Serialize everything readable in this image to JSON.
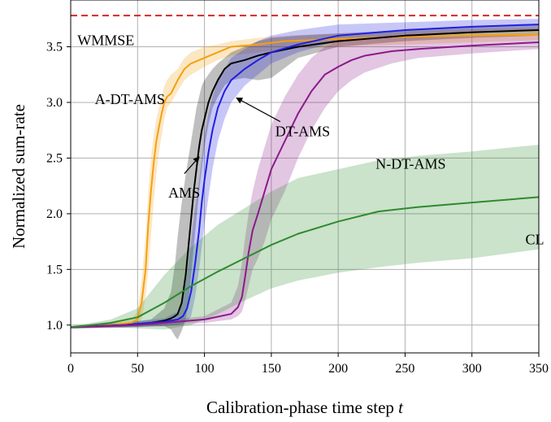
{
  "chart_data": {
    "type": "line",
    "xlabel": "Calibration-phase time step",
    "xlabel_var": "t",
    "ylabel": "Normalized sum-rate",
    "xlim": [
      0,
      350
    ],
    "ylim": [
      0.75,
      3.92
    ],
    "xticks": [
      0,
      50,
      100,
      150,
      200,
      250,
      300,
      350
    ],
    "yticks": [
      1.0,
      1.5,
      2.0,
      2.5,
      3.0,
      3.5
    ],
    "ytick_labels": [
      "1.0",
      "1.5",
      "2.0",
      "2.5",
      "3.0",
      "3.5"
    ],
    "grid": true,
    "reference_line": {
      "name": "WMMSE",
      "y": 3.78,
      "color": "#d62728",
      "style": "dashed"
    },
    "series": [
      {
        "name": "A-DT-AMS",
        "color": "#f5a010",
        "x": [
          0,
          30,
          45,
          50,
          53,
          56,
          58,
          60,
          62,
          64,
          66,
          68,
          70,
          72,
          75,
          80,
          85,
          90,
          100,
          110,
          120,
          140,
          160,
          200,
          250,
          300,
          350
        ],
        "y": [
          0.98,
          1.0,
          1.02,
          1.05,
          1.2,
          1.5,
          1.9,
          2.2,
          2.45,
          2.65,
          2.78,
          2.9,
          3.0,
          3.05,
          3.08,
          3.2,
          3.3,
          3.35,
          3.4,
          3.45,
          3.5,
          3.52,
          3.55,
          3.57,
          3.59,
          3.6,
          3.61
        ],
        "lower": [
          0.97,
          0.98,
          0.99,
          1.0,
          1.05,
          1.25,
          1.5,
          1.8,
          2.1,
          2.35,
          2.55,
          2.7,
          2.85,
          2.95,
          3.0,
          3.1,
          3.2,
          3.25,
          3.32,
          3.38,
          3.42,
          3.45,
          3.48,
          3.5,
          3.52,
          3.54,
          3.56
        ],
        "upper": [
          0.99,
          1.02,
          1.05,
          1.12,
          1.4,
          1.8,
          2.2,
          2.5,
          2.7,
          2.85,
          2.95,
          3.05,
          3.15,
          3.2,
          3.25,
          3.3,
          3.4,
          3.45,
          3.5,
          3.52,
          3.55,
          3.58,
          3.6,
          3.62,
          3.64,
          3.66,
          3.67
        ]
      },
      {
        "name": "AMS",
        "color": "#000000",
        "x": [
          0,
          40,
          60,
          70,
          75,
          78,
          80,
          83,
          86,
          88,
          90,
          92,
          94,
          96,
          98,
          100,
          103,
          106,
          110,
          115,
          120,
          130,
          140,
          150,
          170,
          200,
          250,
          300,
          350
        ],
        "y": [
          0.98,
          1.0,
          1.02,
          1.04,
          1.06,
          1.08,
          1.1,
          1.2,
          1.45,
          1.7,
          1.95,
          2.2,
          2.4,
          2.6,
          2.75,
          2.85,
          3.0,
          3.1,
          3.2,
          3.3,
          3.35,
          3.38,
          3.42,
          3.45,
          3.5,
          3.55,
          3.6,
          3.63,
          3.65
        ],
        "lower": [
          0.97,
          0.98,
          0.99,
          0.99,
          0.96,
          0.9,
          0.87,
          0.95,
          1.05,
          1.2,
          1.45,
          1.7,
          1.95,
          2.2,
          2.4,
          2.6,
          2.8,
          2.95,
          3.05,
          3.15,
          3.2,
          3.22,
          3.2,
          3.22,
          3.4,
          3.5,
          3.55,
          3.58,
          3.6
        ],
        "upper": [
          0.99,
          1.02,
          1.05,
          1.15,
          1.3,
          1.55,
          1.8,
          2.1,
          2.35,
          2.5,
          2.65,
          2.8,
          2.95,
          3.05,
          3.15,
          3.2,
          3.25,
          3.3,
          3.35,
          3.4,
          3.45,
          3.5,
          3.55,
          3.58,
          3.6,
          3.62,
          3.65,
          3.68,
          3.7
        ]
      },
      {
        "name": "DT-AMS",
        "color": "#1f1fe0",
        "x": [
          0,
          40,
          70,
          80,
          84,
          87,
          90,
          93,
          96,
          98,
          100,
          103,
          106,
          110,
          115,
          120,
          130,
          140,
          150,
          170,
          200,
          250,
          300,
          350
        ],
        "y": [
          0.98,
          1.0,
          1.03,
          1.05,
          1.08,
          1.15,
          1.3,
          1.55,
          1.85,
          2.1,
          2.3,
          2.55,
          2.75,
          2.95,
          3.1,
          3.2,
          3.3,
          3.38,
          3.45,
          3.52,
          3.6,
          3.65,
          3.68,
          3.7
        ],
        "lower": [
          0.97,
          0.98,
          0.99,
          1.0,
          1.01,
          1.03,
          1.08,
          1.25,
          1.5,
          1.7,
          1.9,
          2.15,
          2.4,
          2.65,
          2.85,
          3.0,
          3.15,
          3.25,
          3.35,
          3.45,
          3.55,
          3.6,
          3.63,
          3.65
        ],
        "upper": [
          0.99,
          1.02,
          1.06,
          1.12,
          1.25,
          1.45,
          1.75,
          2.05,
          2.3,
          2.5,
          2.7,
          2.9,
          3.05,
          3.2,
          3.3,
          3.4,
          3.48,
          3.55,
          3.6,
          3.65,
          3.7,
          3.72,
          3.74,
          3.75
        ]
      },
      {
        "name": "N-DT-AMS",
        "color": "#8b1a8b",
        "x": [
          0,
          50,
          100,
          120,
          125,
          128,
          130,
          133,
          136,
          140,
          145,
          150,
          160,
          170,
          180,
          190,
          200,
          210,
          220,
          240,
          260,
          300,
          350
        ],
        "y": [
          0.98,
          1.0,
          1.05,
          1.1,
          1.16,
          1.25,
          1.4,
          1.65,
          1.85,
          2.0,
          2.2,
          2.4,
          2.65,
          2.9,
          3.1,
          3.25,
          3.32,
          3.38,
          3.42,
          3.46,
          3.48,
          3.51,
          3.54
        ],
        "lower": [
          0.97,
          0.98,
          1.02,
          1.05,
          1.08,
          1.12,
          1.2,
          1.35,
          1.5,
          1.6,
          1.75,
          1.95,
          2.2,
          2.5,
          2.75,
          2.95,
          3.1,
          3.2,
          3.27,
          3.35,
          3.4,
          3.44,
          3.48
        ],
        "upper": [
          0.99,
          1.02,
          1.08,
          1.2,
          1.35,
          1.55,
          1.75,
          2.0,
          2.2,
          2.4,
          2.6,
          2.8,
          3.05,
          3.25,
          3.4,
          3.5,
          3.55,
          3.57,
          3.58,
          3.6,
          3.6,
          3.6,
          3.6
        ]
      },
      {
        "name": "CL",
        "color": "#2e8b2e",
        "x": [
          0,
          30,
          50,
          70,
          90,
          110,
          130,
          150,
          170,
          200,
          230,
          260,
          300,
          350
        ],
        "y": [
          0.98,
          1.02,
          1.07,
          1.2,
          1.35,
          1.48,
          1.6,
          1.72,
          1.82,
          1.93,
          2.02,
          2.06,
          2.1,
          2.15
        ],
        "lower": [
          0.97,
          0.98,
          0.97,
          0.96,
          1.0,
          1.1,
          1.22,
          1.33,
          1.4,
          1.47,
          1.52,
          1.56,
          1.6,
          1.68
        ],
        "upper": [
          0.99,
          1.05,
          1.15,
          1.45,
          1.7,
          1.9,
          2.05,
          2.2,
          2.32,
          2.4,
          2.48,
          2.52,
          2.56,
          2.62
        ]
      }
    ],
    "annotations": [
      {
        "text": "WMMSE",
        "at": [
          5,
          3.56
        ]
      },
      {
        "text": "A-DT-AMS",
        "at": [
          18,
          3.03
        ]
      },
      {
        "text": "AMS",
        "at": [
          73,
          2.19
        ]
      },
      {
        "text": "DT-AMS",
        "at": [
          153,
          2.74
        ],
        "arrow_to": [
          124,
          3.04
        ]
      },
      {
        "text": "N-DT-AMS",
        "at": [
          228,
          2.45
        ]
      },
      {
        "text": "CL",
        "at": [
          340,
          1.77
        ]
      }
    ],
    "ams_arrow": {
      "from": [
        85,
        2.36
      ],
      "to": [
        96,
        2.51
      ]
    }
  }
}
